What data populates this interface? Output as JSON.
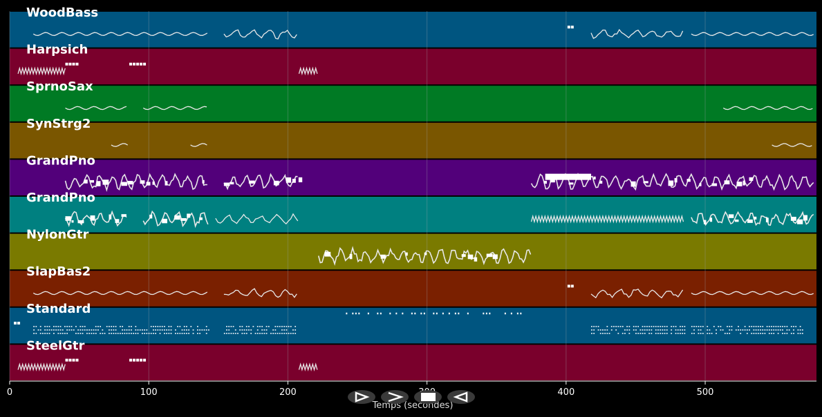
{
  "chart_data": {
    "type": "piano-roll",
    "xlabel": "Temps (secondes)",
    "xlim": [
      0,
      580
    ],
    "xticks": [
      0,
      100,
      200,
      300,
      400,
      500
    ],
    "grid": true,
    "tracks": [
      {
        "name": "WoodBass",
        "color": "#005580",
        "segments": [
          [
            17,
            143,
            "wave"
          ],
          [
            154,
            208,
            "scatter"
          ],
          [
            401,
            404,
            "block"
          ],
          [
            418,
            485,
            "scatter"
          ],
          [
            490,
            578,
            "wave"
          ]
        ]
      },
      {
        "name": "Harpsich",
        "color": "#7a002c",
        "segments": [
          [
            6,
            40,
            "zig"
          ],
          [
            40,
            40,
            "blocks"
          ],
          [
            86,
            96,
            "blocks"
          ],
          [
            208,
            222,
            "zig"
          ]
        ]
      },
      {
        "name": "SprnoSax",
        "color": "#007a24",
        "segments": [
          [
            40,
            85,
            "wave"
          ],
          [
            96,
            143,
            "wave"
          ],
          [
            513,
            578,
            "wave"
          ]
        ]
      },
      {
        "name": "SynStrg2",
        "color": "#7a5600",
        "segments": [
          [
            73,
            85,
            "wave"
          ],
          [
            130,
            143,
            "wave"
          ],
          [
            548,
            578,
            "wave"
          ]
        ]
      },
      {
        "name": "GrandPno",
        "color": "#52007a",
        "segments": [
          [
            40,
            143,
            "dense"
          ],
          [
            154,
            208,
            "dense"
          ],
          [
            375,
            578,
            "dense"
          ],
          [
            385,
            418,
            "bar"
          ]
        ]
      },
      {
        "name": "GrandPno",
        "color": "#008080",
        "segments": [
          [
            40,
            85,
            "dense"
          ],
          [
            96,
            143,
            "dense"
          ],
          [
            148,
            208,
            "scatter"
          ],
          [
            375,
            485,
            "zig"
          ],
          [
            490,
            578,
            "dense"
          ]
        ]
      },
      {
        "name": "NylonGtr",
        "color": "#7a7a00",
        "segments": [
          [
            222,
            375,
            "dense"
          ]
        ]
      },
      {
        "name": "SlapBas2",
        "color": "#7a2000",
        "segments": [
          [
            17,
            143,
            "wave"
          ],
          [
            154,
            208,
            "scatter"
          ],
          [
            401,
            404,
            "block"
          ],
          [
            418,
            485,
            "scatter"
          ],
          [
            490,
            578,
            "wave"
          ]
        ]
      },
      {
        "name": "Standard",
        "color": "#005580",
        "segments": [
          [
            3,
            5,
            "block"
          ],
          [
            17,
            143,
            "drums"
          ],
          [
            154,
            205,
            "drums"
          ],
          [
            235,
            368,
            "dots"
          ],
          [
            418,
            485,
            "drums"
          ],
          [
            490,
            570,
            "drums"
          ]
        ]
      },
      {
        "name": "SteelGtr",
        "color": "#7a002c",
        "segments": [
          [
            6,
            40,
            "zig"
          ],
          [
            40,
            40,
            "blocks"
          ],
          [
            86,
            96,
            "blocks"
          ],
          [
            208,
            222,
            "zig"
          ]
        ]
      }
    ]
  },
  "controls": {
    "icons": [
      "play-icon",
      "forward-icon",
      "stop-icon",
      "rewind-icon"
    ]
  }
}
